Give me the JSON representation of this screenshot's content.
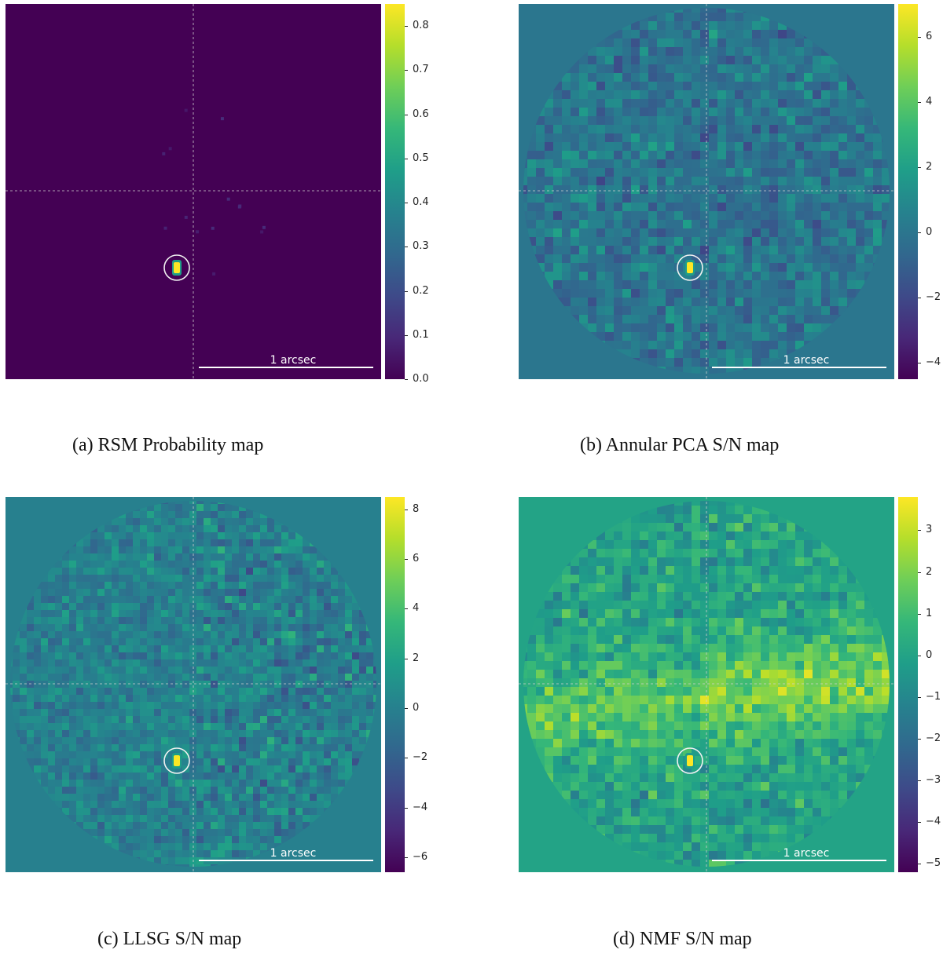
{
  "figure": {
    "panels": [
      {
        "id": "a",
        "caption": "(a) RSM Probability map",
        "scalebar_label": "1 arcsec",
        "colorbar_ticks": [
          "0.8",
          "0.7",
          "0.6",
          "0.5",
          "0.4",
          "0.3",
          "0.2",
          "0.1",
          "0.0"
        ],
        "colorbar_tick_values": [
          0.8,
          0.7,
          0.6,
          0.5,
          0.4,
          0.3,
          0.2,
          0.1,
          0.0
        ],
        "colorbar_range": [
          0.0,
          0.85
        ],
        "background_level": 0.0,
        "noise_amplitude": 0.0,
        "style": "probability",
        "colormap": "viridis"
      },
      {
        "id": "b",
        "caption": "(b) Annular PCA S/N map",
        "scalebar_label": "1 arcsec",
        "colorbar_ticks": [
          "6",
          "4",
          "2",
          "0",
          "−2",
          "−4"
        ],
        "colorbar_tick_values": [
          6,
          4,
          2,
          0,
          -2,
          -4
        ],
        "colorbar_range": [
          -4.5,
          7.0
        ],
        "background_level": 0.0,
        "noise_amplitude": 1.6,
        "style": "smooth",
        "colormap": "viridis"
      },
      {
        "id": "c",
        "caption": "(c) LLSG S/N map",
        "scalebar_label": "1 arcsec",
        "colorbar_ticks": [
          "8",
          "6",
          "4",
          "2",
          "0",
          "−2",
          "−4",
          "−6"
        ],
        "colorbar_tick_values": [
          8,
          6,
          4,
          2,
          0,
          -2,
          -4,
          -6
        ],
        "colorbar_range": [
          -6.6,
          8.5
        ],
        "background_level": 0.0,
        "noise_amplitude": 1.8,
        "style": "blocky",
        "colormap": "viridis"
      },
      {
        "id": "d",
        "caption": "(d) NMF S/N map",
        "scalebar_label": "1 arcsec",
        "colorbar_ticks": [
          "3",
          "2",
          "1",
          "0",
          "−1",
          "−2",
          "−3",
          "−4",
          "−5"
        ],
        "colorbar_tick_values": [
          3,
          2,
          1,
          0,
          -1,
          -2,
          -3,
          -4,
          -5
        ],
        "colorbar_range": [
          -5.2,
          3.8
        ],
        "background_level": 0.0,
        "noise_amplitude": 1.3,
        "style": "band",
        "colormap": "viridis"
      }
    ]
  }
}
